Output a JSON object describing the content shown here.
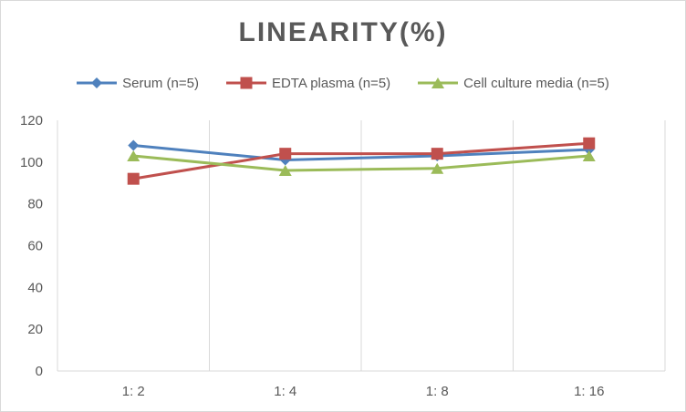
{
  "chart_data": {
    "type": "line",
    "title": "LINEARITY(%)",
    "xlabel": "",
    "ylabel": "",
    "categories": [
      "1:2",
      "1:4",
      "1:8",
      "1:16"
    ],
    "ylim": [
      0,
      120
    ],
    "yticks": [
      0,
      20,
      40,
      60,
      80,
      100,
      120
    ],
    "grid": "vertical",
    "legend_position": "top",
    "series": [
      {
        "name": "Serum (n=5)",
        "color": "#4f81bd",
        "marker": "diamond",
        "values": [
          108,
          101,
          103,
          106
        ]
      },
      {
        "name": "EDTA plasma (n=5)",
        "color": "#c0504d",
        "marker": "square",
        "values": [
          92,
          104,
          104,
          109
        ]
      },
      {
        "name": "Cell culture media (n=5)",
        "color": "#9bbb59",
        "marker": "triangle",
        "values": [
          103,
          96,
          97,
          103
        ]
      }
    ]
  }
}
